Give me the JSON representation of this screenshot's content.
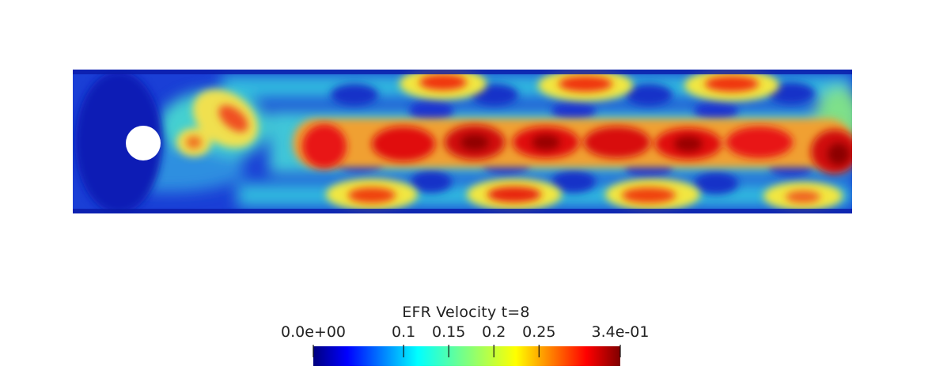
{
  "figure": {
    "colorbar": {
      "title": "EFR  Velocity t=8",
      "range": [
        0.0,
        0.34
      ],
      "colormap": "jet",
      "ticks": [
        {
          "label": "0.0e+00",
          "value": 0.0
        },
        {
          "label": "0.1",
          "value": 0.1
        },
        {
          "label": "0.15",
          "value": 0.15
        },
        {
          "label": "0.2",
          "value": 0.2
        },
        {
          "label": "0.25",
          "value": 0.25
        },
        {
          "label": "3.4e-01",
          "value": 0.34
        }
      ]
    },
    "domain": {
      "obstacle": "cylinder",
      "field": "velocity magnitude",
      "background_color": "#ffffff"
    }
  }
}
